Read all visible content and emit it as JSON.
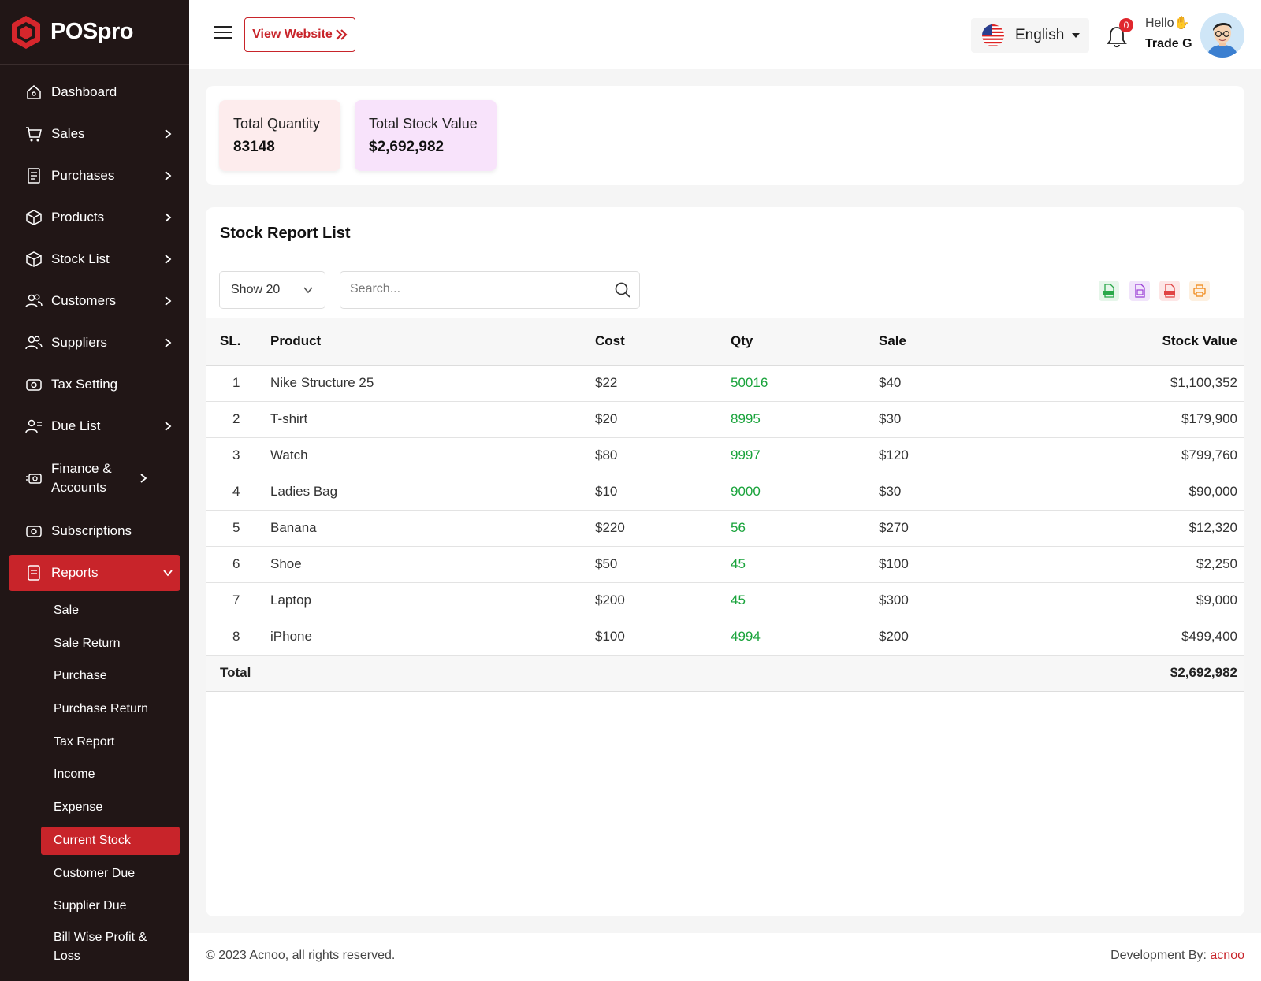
{
  "brand": {
    "name": "POSpro"
  },
  "nav": {
    "items": [
      {
        "label": "Dashboard",
        "icon": "home-icon",
        "has_children": false
      },
      {
        "label": "Sales",
        "icon": "cart-icon",
        "has_children": true
      },
      {
        "label": "Purchases",
        "icon": "receipt-icon",
        "has_children": true
      },
      {
        "label": "Products",
        "icon": "box-icon",
        "has_children": true
      },
      {
        "label": "Stock List",
        "icon": "box-icon",
        "has_children": true
      },
      {
        "label": "Customers",
        "icon": "users-icon",
        "has_children": true
      },
      {
        "label": "Suppliers",
        "icon": "users-icon",
        "has_children": true
      },
      {
        "label": "Tax Setting",
        "icon": "money-icon",
        "has_children": false
      },
      {
        "label": "Due List",
        "icon": "user-list-icon",
        "has_children": true
      },
      {
        "label": "Finance & Accounts",
        "icon": "finance-icon",
        "has_children": true
      },
      {
        "label": "Subscriptions",
        "icon": "money-icon",
        "has_children": false
      },
      {
        "label": "Reports",
        "icon": "report-icon",
        "has_children": true
      }
    ],
    "reports_sub": [
      "Sale",
      "Sale Return",
      "Purchase",
      "Purchase Return",
      "Tax Report",
      "Income",
      "Expense",
      "Current Stock",
      "Customer Due",
      "Supplier Due",
      "Bill Wise Profit & Loss"
    ],
    "active_sub": "Current Stock"
  },
  "header": {
    "view_website": "View Website",
    "language": "English",
    "notification_count": "0",
    "greeting": "Hello",
    "user_name": "Trade G"
  },
  "stats": {
    "total_quantity_label": "Total Quantity",
    "total_quantity_value": "83148",
    "total_stock_value_label": "Total Stock Value",
    "total_stock_value_value": "$2,692,982"
  },
  "report": {
    "title": "Stock Report List",
    "show_label": "Show 20",
    "search_placeholder": "Search...",
    "columns": [
      "SL.",
      "Product",
      "Cost",
      "Qty",
      "Sale",
      "Stock Value"
    ],
    "rows": [
      {
        "sl": "1",
        "product": "Nike Structure 25",
        "cost": "$22",
        "qty": "50016",
        "sale": "$40",
        "value": "$1,100,352"
      },
      {
        "sl": "2",
        "product": "T-shirt",
        "cost": "$20",
        "qty": "8995",
        "sale": "$30",
        "value": "$179,900"
      },
      {
        "sl": "3",
        "product": "Watch",
        "cost": "$80",
        "qty": "9997",
        "sale": "$120",
        "value": "$799,760"
      },
      {
        "sl": "4",
        "product": "Ladies Bag",
        "cost": "$10",
        "qty": "9000",
        "sale": "$30",
        "value": "$90,000"
      },
      {
        "sl": "5",
        "product": "Banana",
        "cost": "$220",
        "qty": "56",
        "sale": "$270",
        "value": "$12,320"
      },
      {
        "sl": "6",
        "product": "Shoe",
        "cost": "$50",
        "qty": "45",
        "sale": "$100",
        "value": "$2,250"
      },
      {
        "sl": "7",
        "product": "Laptop",
        "cost": "$200",
        "qty": "45",
        "sale": "$300",
        "value": "$9,000"
      },
      {
        "sl": "8",
        "product": "iPhone",
        "cost": "$100",
        "qty": "4994",
        "sale": "$200",
        "value": "$499,400"
      }
    ],
    "total_label": "Total",
    "total_value": "$2,692,982"
  },
  "footer": {
    "copyright": "© 2023 Acnoo, all rights reserved.",
    "dev_label": "Development By: ",
    "dev_name": "acnoo"
  },
  "colors": {
    "accent": "#c8242a",
    "sidebar": "#211616",
    "qty_green": "#19a33b"
  }
}
